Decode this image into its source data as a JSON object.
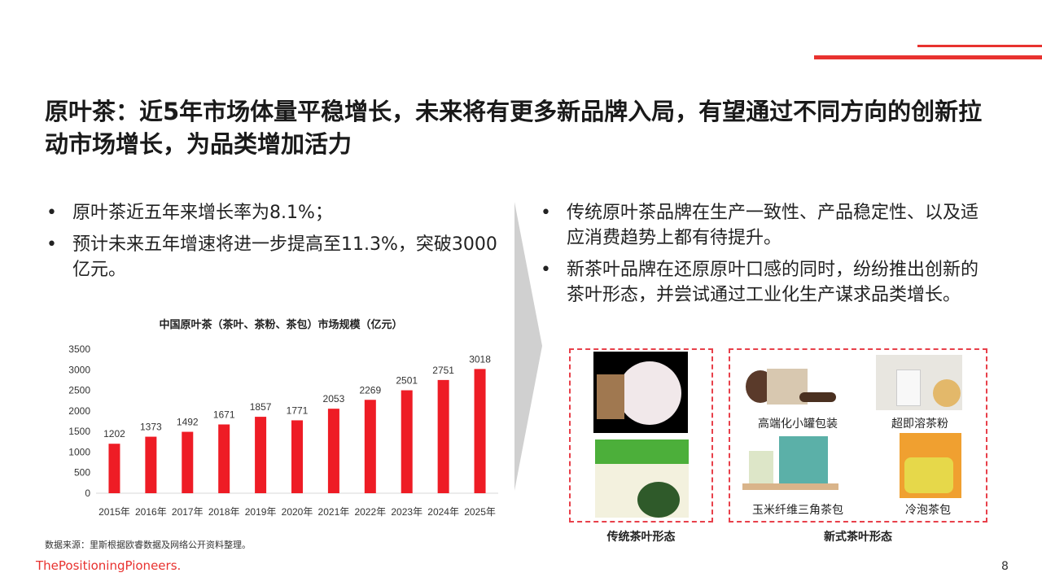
{
  "title": "原叶茶：近5年市场体量平稳增长，未来将有更多新品牌入局，有望通过不同方向的创新拉动市场增长，为品类增加活力",
  "left_bullets": [
    "原叶茶近五年来增长率为8.1%；",
    "预计未来五年增速将进一步提高至11.3%，突破3000亿元。"
  ],
  "right_bullets": [
    "传统原叶茶品牌在生产一致性、产品稳定性、以及适应消费趋势上都有待提升。",
    "新茶叶品牌在还原原叶口感的同时，纷纷推出创新的茶叶形态，并尝试通过工业化生产谋求品类增长。"
  ],
  "chart_data": {
    "type": "bar",
    "title": "中国原叶茶（茶叶、茶粉、茶包）市场规模（亿元）",
    "categories": [
      "2015年",
      "2016年",
      "2017年",
      "2018年",
      "2019年",
      "2020年",
      "2021年",
      "2022年",
      "2023年",
      "2024年",
      "2025年"
    ],
    "values": [
      1202,
      1373,
      1492,
      1671,
      1857,
      1771,
      2053,
      2269,
      2501,
      2751,
      3018
    ],
    "ylim": [
      0,
      3500
    ],
    "yticks": [
      0,
      500,
      1000,
      1500,
      2000,
      2500,
      3000,
      3500
    ],
    "grid": false,
    "bar_color": "#ee1c25"
  },
  "traditional": {
    "label": "传统茶叶形态"
  },
  "modern": {
    "label": "新式茶叶形态",
    "items": [
      "高端化小罐包装",
      "超即溶茶粉",
      "玉米纤维三角茶包",
      "冷泡茶包"
    ]
  },
  "source": "数据来源：里斯根据欧睿数据及网络公开资料整理。",
  "brand": "ThePositioningPioneers.",
  "page_number": "8",
  "accent": "#e8322f"
}
